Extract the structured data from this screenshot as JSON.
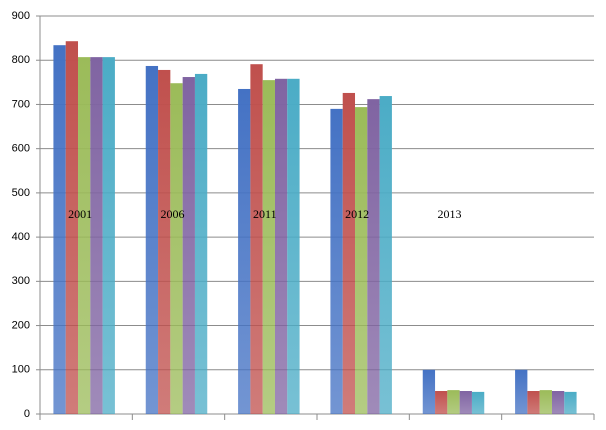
{
  "chart_data": {
    "type": "bar",
    "categories": [
      "2001",
      "2006",
      "2011",
      "2012",
      "2013",
      null
    ],
    "series": [
      {
        "color": "#4472c4",
        "values": [
          834,
          787,
          735,
          690,
          100,
          100
        ]
      },
      {
        "color": "#c0504d",
        "values": [
          843,
          778,
          791,
          726,
          52,
          52
        ]
      },
      {
        "color": "#9bbb59",
        "values": [
          807,
          748,
          755,
          694,
          54,
          54
        ]
      },
      {
        "color": "#8064a2",
        "values": [
          807,
          762,
          758,
          712,
          52,
          52
        ]
      },
      {
        "color": "#4bacc6",
        "values": [
          807,
          769,
          758,
          719,
          50,
          50
        ]
      }
    ],
    "ylim": [
      0,
      900
    ],
    "yticks": [
      0,
      100,
      200,
      300,
      400,
      500,
      600,
      700,
      800,
      900
    ],
    "grid": true
  }
}
